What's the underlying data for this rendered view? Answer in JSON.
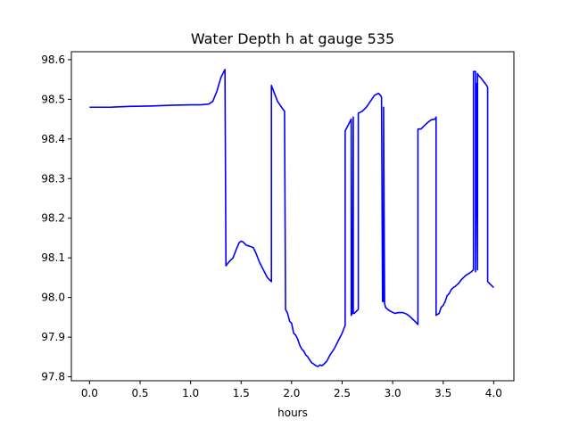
{
  "chart_data": {
    "type": "line",
    "title": "Water Depth h at gauge 535",
    "xlabel": "hours",
    "ylabel": "",
    "xlim": [
      -0.18,
      4.2
    ],
    "ylim": [
      97.79,
      98.62
    ],
    "xticks": [
      0.0,
      0.5,
      1.0,
      1.5,
      2.0,
      2.5,
      3.0,
      3.5,
      4.0
    ],
    "xtick_labels": [
      "0.0",
      "0.5",
      "1.0",
      "1.5",
      "2.0",
      "2.5",
      "3.0",
      "3.5",
      "4.0"
    ],
    "yticks": [
      97.8,
      97.9,
      98.0,
      98.1,
      98.2,
      98.3,
      98.4,
      98.5,
      98.6
    ],
    "ytick_labels": [
      "97.8",
      "97.9",
      "98.0",
      "98.1",
      "98.2",
      "98.3",
      "98.4",
      "98.5",
      "98.6"
    ],
    "grid": false,
    "legend": "none",
    "color": "#0000ff",
    "series": [
      {
        "x": [
          0.0,
          0.1,
          0.2,
          0.4,
          0.6,
          0.8,
          1.0,
          1.1,
          1.18,
          1.22,
          1.26,
          1.3,
          1.33,
          1.34,
          1.35,
          1.38,
          1.42,
          1.45,
          1.48,
          1.5,
          1.52,
          1.55,
          1.6,
          1.62,
          1.65,
          1.68,
          1.72,
          1.76,
          1.8,
          1.8,
          1.83,
          1.86,
          1.9,
          1.93,
          1.93,
          1.94,
          1.96,
          1.98,
          2.0,
          2.02,
          2.04,
          2.06,
          2.08,
          2.1,
          2.12,
          2.14,
          2.16,
          2.18,
          2.2,
          2.22,
          2.24,
          2.26,
          2.28,
          2.3,
          2.32,
          2.35,
          2.38,
          2.42,
          2.46,
          2.5,
          2.53,
          2.53,
          2.56,
          2.58,
          2.59,
          2.59,
          2.6,
          2.61,
          2.61,
          2.62,
          2.64,
          2.66,
          2.66,
          2.7,
          2.74,
          2.78,
          2.82,
          2.86,
          2.88,
          2.89,
          2.89,
          2.9,
          2.91,
          2.91,
          2.92,
          2.93,
          2.95,
          2.98,
          3.02,
          3.06,
          3.1,
          3.14,
          3.18,
          3.22,
          3.25,
          3.25,
          3.28,
          3.3,
          3.34,
          3.38,
          3.42,
          3.43,
          3.43,
          3.46,
          3.48,
          3.5,
          3.52,
          3.54,
          3.56,
          3.58,
          3.6,
          3.62,
          3.65,
          3.68,
          3.7,
          3.72,
          3.75,
          3.78,
          3.8,
          3.8,
          3.82,
          3.82,
          3.83,
          3.84,
          3.84,
          3.85,
          3.87,
          3.9,
          3.93,
          3.94,
          3.94,
          3.96,
          3.98,
          4.0
        ],
        "y": [
          98.48,
          98.48,
          98.48,
          98.482,
          98.483,
          98.485,
          98.486,
          98.486,
          98.488,
          98.495,
          98.52,
          98.555,
          98.57,
          98.575,
          98.08,
          98.09,
          98.1,
          98.12,
          98.138,
          98.142,
          98.14,
          98.132,
          98.128,
          98.126,
          98.11,
          98.09,
          98.07,
          98.05,
          98.04,
          98.535,
          98.515,
          98.495,
          98.48,
          98.47,
          98.46,
          97.97,
          97.96,
          97.94,
          97.935,
          97.91,
          97.905,
          97.895,
          97.88,
          97.87,
          97.865,
          97.855,
          97.85,
          97.842,
          97.835,
          97.832,
          97.828,
          97.826,
          97.83,
          97.828,
          97.832,
          97.84,
          97.855,
          97.87,
          97.89,
          97.91,
          97.93,
          98.42,
          98.435,
          98.445,
          98.45,
          97.955,
          97.96,
          98.455,
          97.96,
          97.96,
          97.965,
          97.97,
          98.465,
          98.47,
          98.48,
          98.495,
          98.51,
          98.515,
          98.51,
          98.505,
          98.5,
          97.99,
          97.99,
          98.48,
          97.985,
          97.975,
          97.97,
          97.965,
          97.96,
          97.962,
          97.962,
          97.958,
          97.95,
          97.94,
          97.932,
          98.425,
          98.425,
          98.43,
          98.44,
          98.448,
          98.45,
          98.455,
          97.955,
          97.96,
          97.975,
          97.98,
          97.99,
          98.005,
          98.01,
          98.02,
          98.025,
          98.028,
          98.035,
          98.045,
          98.05,
          98.055,
          98.06,
          98.065,
          98.07,
          98.57,
          98.57,
          98.065,
          98.54,
          98.07,
          98.565,
          98.56,
          98.555,
          98.545,
          98.535,
          98.53,
          98.04,
          98.035,
          98.03,
          98.025
        ]
      }
    ]
  }
}
